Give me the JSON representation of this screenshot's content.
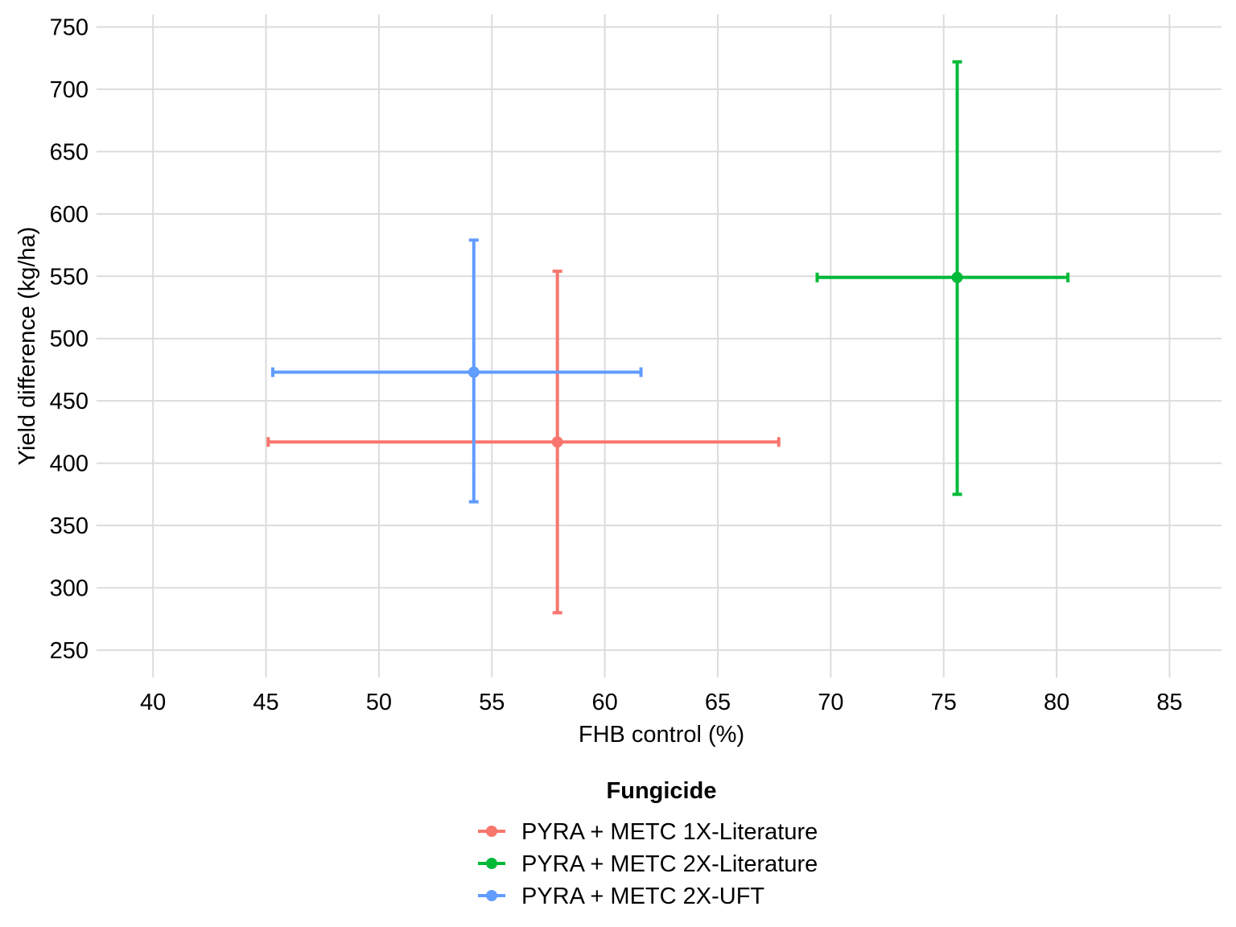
{
  "chart_data": {
    "type": "scatter",
    "title": "",
    "xlabel": "FHB control (%)",
    "ylabel": "Yield difference (kg/ha)",
    "xlim": [
      37.5,
      87.3
    ],
    "ylim": [
      228,
      760
    ],
    "x_ticks": [
      40,
      45,
      50,
      55,
      60,
      65,
      70,
      75,
      80,
      85
    ],
    "y_ticks": [
      250,
      300,
      350,
      400,
      450,
      500,
      550,
      600,
      650,
      700,
      750
    ],
    "grid": true,
    "legend": {
      "title": "Fungicide",
      "position": "bottom"
    },
    "series": [
      {
        "name": "PYRA + METC 1X-Literature",
        "color": "#F8766D",
        "x": 57.9,
        "y": 417,
        "x_err": [
          45.1,
          67.7
        ],
        "y_err": [
          280,
          554
        ]
      },
      {
        "name": "PYRA + METC 2X-Literature",
        "color": "#00BA38",
        "x": 75.6,
        "y": 549,
        "x_err": [
          69.4,
          80.5
        ],
        "y_err": [
          375,
          722
        ]
      },
      {
        "name": "PYRA + METC 2X-UFT",
        "color": "#619CFF",
        "x": 54.2,
        "y": 473,
        "x_err": [
          45.3,
          61.6
        ],
        "y_err": [
          369,
          579
        ]
      }
    ]
  }
}
